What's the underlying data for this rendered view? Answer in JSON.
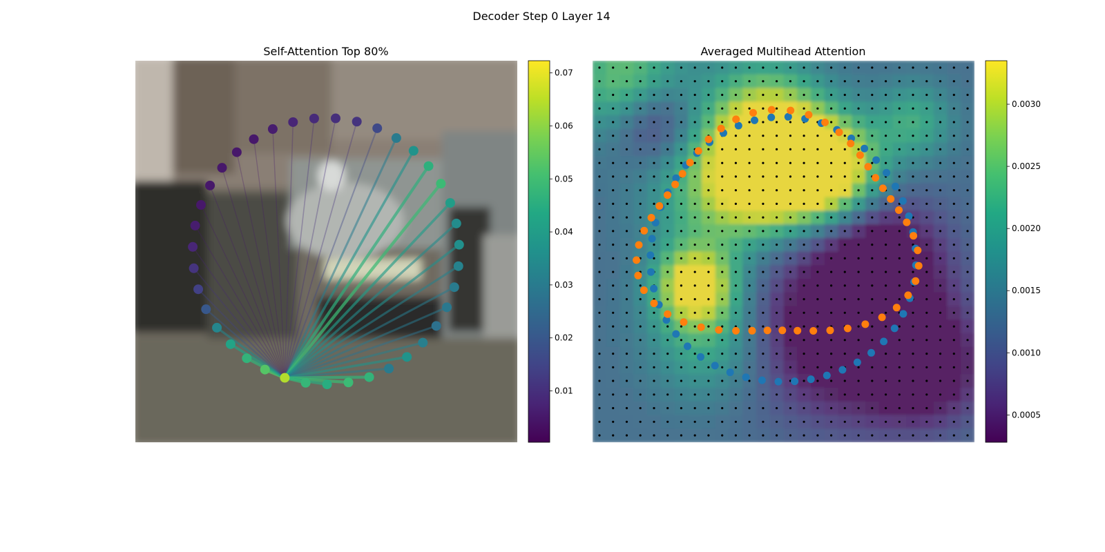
{
  "figure": {
    "title": "Decoder Step 0 Layer 14"
  },
  "chart_data": [
    {
      "type": "scatter",
      "title": "Self-Attention Top 80%",
      "colormap": "viridis",
      "colorbar": {
        "range": [
          0.0003,
          0.0723
        ],
        "ticks": [
          0.01,
          0.02,
          0.03,
          0.04,
          0.05,
          0.06,
          0.07
        ],
        "tick_labels": [
          "0.01",
          "0.02",
          "0.03",
          "0.04",
          "0.05",
          "0.06",
          "0.07"
        ]
      },
      "query_index": 0,
      "contour_point_count": 50,
      "attention_weights": [
        0.064,
        0.053,
        0.047,
        0.042,
        0.033,
        0.02,
        0.014,
        0.011,
        0.008,
        0.006,
        0.005,
        0.005,
        0.005,
        0.005,
        0.005,
        0.006,
        0.008,
        0.009,
        0.01,
        0.011,
        0.016,
        0.03,
        0.037,
        0.046,
        0.049,
        0.04,
        0.035,
        0.036,
        0.032,
        0.03,
        0.029,
        0.027,
        0.031,
        0.037,
        0.03,
        0.047,
        0.049,
        0.045,
        0.048
      ],
      "attention_links_source": 0,
      "axes_visible": false
    },
    {
      "type": "heatmap",
      "title": "Averaged Multihead Attention",
      "colormap": "viridis",
      "colorbar": {
        "range": [
          0.00028,
          0.00335
        ],
        "ticks": [
          0.0005,
          0.001,
          0.0015,
          0.002,
          0.0025,
          0.003
        ],
        "tick_labels": [
          "0.0005",
          "0.0010",
          "0.0015",
          "0.0020",
          "0.0025",
          "0.0030"
        ]
      },
      "grid_size": [
        28,
        28
      ],
      "reference_grid_dots": true,
      "series": [
        {
          "color": "#1f77b4",
          "point_count": 50
        },
        {
          "color": "#ff7f0e",
          "point_count": 50
        }
      ],
      "axes_visible": false
    }
  ],
  "colors": {
    "series_blue": "#1f77b4",
    "series_orange": "#ff7f0e",
    "grid_dot": "#000000"
  }
}
